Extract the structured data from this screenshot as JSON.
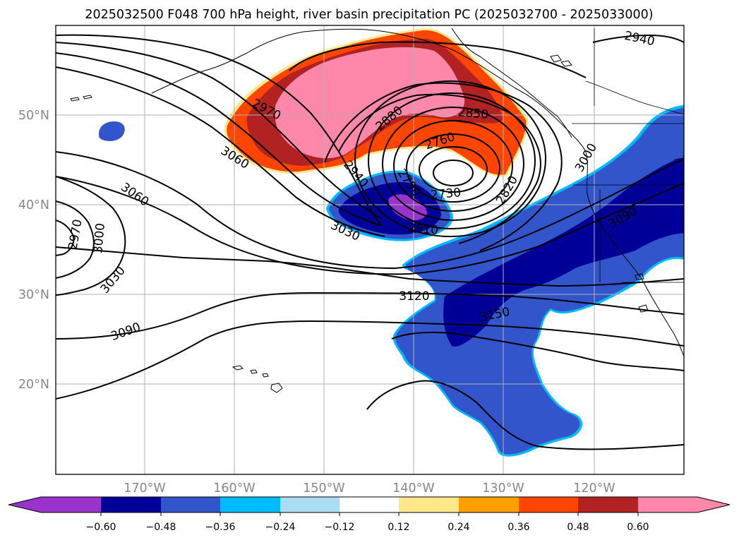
{
  "title": "2025032500 F048 700 hPa height, river basin precipitation PC (2025032700 - 2025033000)",
  "lat_labels": [
    "50°N",
    "40°N",
    "30°N",
    "20°N"
  ],
  "lon_labels": [
    "170°W",
    "160°W",
    "150°W",
    "140°W",
    "130°W",
    "120°W"
  ],
  "contour_labels": [
    "2940",
    "2970",
    "3060",
    "3060",
    "2970",
    "3000",
    "3030",
    "3090",
    "2880",
    "2850",
    "2760",
    "2940",
    "2790",
    "2730",
    "2820",
    "3000",
    "3030",
    "2910",
    "3090",
    "3120",
    "3150"
  ],
  "colorbar": {
    "ticks": [
      "−0.60",
      "−0.48",
      "−0.36",
      "−0.24",
      "−0.12",
      "0.12",
      "0.24",
      "0.36",
      "0.48",
      "0.60"
    ],
    "colors": [
      "#9933cc",
      "#000099",
      "#3355cc",
      "#00bbff",
      "#aaddf5",
      "#ffffff",
      "#ffe88a",
      "#ffa000",
      "#ff4500",
      "#b22222",
      "#ff88aa"
    ]
  },
  "colors": {
    "positive_pink": "#ff88aa",
    "positive_darkred": "#b22222",
    "positive_orange": "#ff4500",
    "negative_darkblue": "#000099",
    "negative_blue": "#3355cc",
    "negative_purple": "#9933cc",
    "negative_cyan": "#00bbff"
  }
}
